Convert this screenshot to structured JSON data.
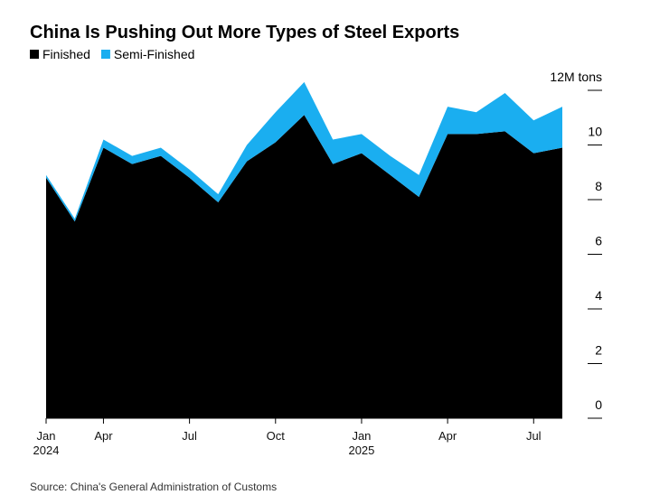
{
  "chart_data": {
    "type": "stacked_area",
    "title": "China Is Pushing Out More Types of Steel Exports",
    "source": "Source: China's General Administration of Customs",
    "categories": [
      "Jan\n2024",
      null,
      "Apr",
      null,
      null,
      "Jul",
      null,
      null,
      "Oct",
      null,
      null,
      "Jan\n2025",
      null,
      null,
      "Apr",
      null,
      null,
      "Jul",
      null
    ],
    "series": [
      {
        "name": "Finished",
        "color": "#000000",
        "values": [
          8.8,
          7.2,
          9.9,
          9.3,
          9.6,
          8.8,
          7.9,
          9.4,
          10.1,
          11.1,
          9.3,
          9.7,
          8.9,
          8.1,
          10.4,
          10.4,
          10.5,
          9.7,
          9.9
        ]
      },
      {
        "name": "Semi-Finished",
        "color": "#1aaef0",
        "values": [
          0.1,
          0.1,
          0.3,
          0.3,
          0.3,
          0.3,
          0.3,
          0.6,
          1.1,
          1.2,
          0.9,
          0.7,
          0.7,
          0.8,
          1.0,
          0.8,
          1.4,
          1.2,
          1.5
        ]
      }
    ],
    "ylim": [
      0,
      12
    ],
    "yticks": [
      0,
      2,
      4,
      6,
      8,
      10,
      {
        "value": 12,
        "label": "12M tons"
      }
    ],
    "legend": "top-left"
  }
}
